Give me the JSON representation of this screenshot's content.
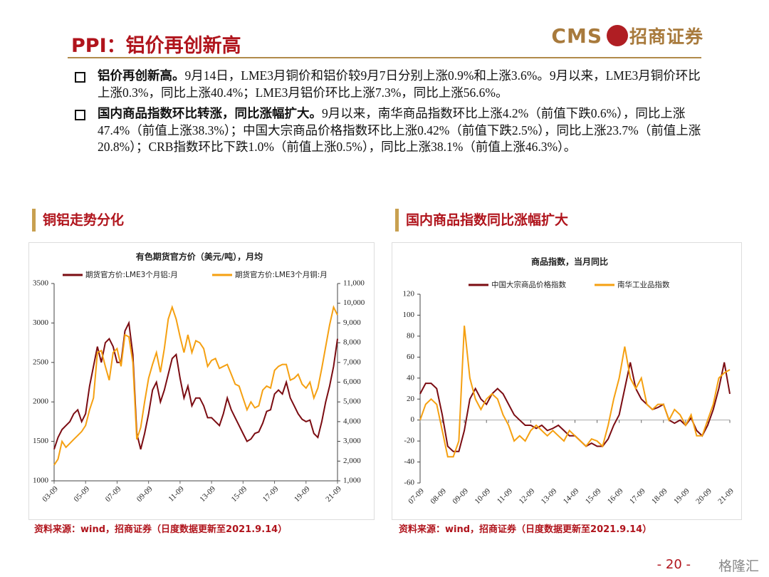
{
  "header": {
    "title": "PPI：铝价再创新高",
    "logo_en": "CMS",
    "logo_cn": "招商证券"
  },
  "bullets": [
    {
      "heading": "铝价再创新高。",
      "text": "9月14日，LME3月铜价和铝价较9月7日分别上涨0.9%和上涨3.6%。9月以来，LME3月铜价环比上涨0.3%，同比上涨40.4%；LME3月铝价环比上涨7.3%，同比上涨56.6%。"
    },
    {
      "heading": "国内商品指数环比转涨，同比涨幅扩大。",
      "text": "9月以来，南华商品指数环比上涨4.2%（前值下跌0.6%），同比上涨47.4%（前值上涨38.3%）；中国大宗商品价格指数环比上涨0.42%（前值下跌2.5%），同比上涨23.7%（前值上涨20.8%）；CRB指数环比下跌1.0%（前值上涨0.5%），同比上涨38.1%（前值上涨46.3%）。"
    }
  ],
  "sections": [
    {
      "heading": "铜铝走势分化",
      "source": "资料来源：wind，招商证券（日度数据更新至2021.9.14）"
    },
    {
      "heading": "国内商品指数同比涨幅扩大",
      "source": "资料来源：wind，招商证券（日度数据更新至2021.9.14）"
    }
  ],
  "chart_data": [
    {
      "type": "line",
      "title": "有色期货官方价（美元/吨），月均",
      "x": [
        "03-09",
        "03-12",
        "04-03",
        "04-06",
        "04-09",
        "04-12",
        "05-03",
        "05-06",
        "05-09",
        "05-12",
        "06-03",
        "06-06",
        "06-09",
        "06-12",
        "07-03",
        "07-06",
        "07-09",
        "07-12",
        "08-03",
        "08-06",
        "08-09",
        "08-12",
        "09-03",
        "09-06",
        "09-09",
        "09-12",
        "10-03",
        "10-06",
        "10-09",
        "10-12",
        "11-03",
        "11-06",
        "11-09",
        "11-12",
        "12-03",
        "12-06",
        "12-09",
        "12-12",
        "13-03",
        "13-06",
        "13-09",
        "13-12",
        "14-03",
        "14-06",
        "14-09",
        "14-12",
        "15-03",
        "15-06",
        "15-09",
        "15-12",
        "16-03",
        "16-06",
        "16-09",
        "16-12",
        "17-03",
        "17-06",
        "17-09",
        "17-12",
        "18-03",
        "18-06",
        "18-09",
        "18-12",
        "19-03",
        "19-06",
        "19-09",
        "19-12",
        "20-03",
        "20-06",
        "20-09",
        "20-12",
        "21-03",
        "21-06",
        "21-09"
      ],
      "xticks": [
        "03-09",
        "05-09",
        "07-09",
        "09-09",
        "11-09",
        "13-09",
        "15-09",
        "17-09",
        "19-09",
        "21-09"
      ],
      "ylim": [
        1000,
        3500
      ],
      "yticks": [
        1000,
        1500,
        2000,
        2500,
        3000,
        3500
      ],
      "y2lim": [
        1000,
        11000
      ],
      "y2ticks": [
        {
          "value": 1000,
          "label": "1,000"
        },
        {
          "value": 2000,
          "label": "2,000"
        },
        {
          "value": 3000,
          "label": "3,000"
        },
        {
          "value": 4000,
          "label": "4,000"
        },
        {
          "value": 5000,
          "label": "5,000"
        },
        {
          "value": 6000,
          "label": "6,000"
        },
        {
          "value": 7000,
          "label": "7,000"
        },
        {
          "value": 8000,
          "label": "8,000"
        },
        {
          "value": 9000,
          "label": "9,000"
        },
        {
          "value": 10000,
          "label": "10,000"
        },
        {
          "value": 11000,
          "label": "11,000"
        }
      ],
      "series": [
        {
          "name": "期货官方价:LME3个月铝:月",
          "color": "#7b0c12",
          "values": [
            1400,
            1550,
            1650,
            1700,
            1750,
            1850,
            1900,
            1750,
            1850,
            2200,
            2450,
            2700,
            2500,
            2750,
            2800,
            2700,
            2500,
            2500,
            2900,
            3000,
            2600,
            1600,
            1400,
            1600,
            1850,
            2150,
            2250,
            2000,
            2150,
            2350,
            2550,
            2600,
            2300,
            2050,
            2200,
            1950,
            2050,
            2050,
            1950,
            1800,
            1800,
            1750,
            1700,
            1850,
            2050,
            1900,
            1800,
            1700,
            1600,
            1500,
            1530,
            1600,
            1620,
            1730,
            1880,
            1900,
            2100,
            2150,
            2100,
            2250,
            2050,
            1950,
            1850,
            1780,
            1750,
            1770,
            1600,
            1550,
            1750,
            2000,
            2200,
            2450,
            2800
          ]
        },
        {
          "name": "期货官方价:LME3个月铜:月",
          "color": "#f5a011",
          "axis": "y2",
          "values": [
            1800,
            2100,
            3000,
            2700,
            2900,
            3100,
            3300,
            3500,
            3800,
            4600,
            5200,
            7500,
            7600,
            6800,
            6100,
            7500,
            7700,
            6800,
            8400,
            8300,
            7000,
            3100,
            3700,
            5000,
            6200,
            6900,
            7500,
            6500,
            7700,
            9200,
            9800,
            9200,
            8300,
            7500,
            8400,
            7500,
            8100,
            8000,
            7700,
            6800,
            7100,
            7200,
            6700,
            6800,
            6900,
            6400,
            5900,
            5800,
            5200,
            4600,
            5000,
            4700,
            4800,
            5600,
            5800,
            5700,
            6600,
            6800,
            6900,
            6900,
            6100,
            6200,
            6400,
            5900,
            5700,
            6000,
            5200,
            5700,
            6700,
            7800,
            8900,
            9800,
            9400
          ]
        }
      ]
    },
    {
      "type": "line",
      "title": "商品指数，当月同比",
      "x": [
        "07-09",
        "07-12",
        "08-03",
        "08-06",
        "08-09",
        "08-12",
        "09-03",
        "09-06",
        "09-09",
        "09-12",
        "10-03",
        "10-06",
        "10-09",
        "10-12",
        "11-03",
        "11-06",
        "11-09",
        "11-12",
        "12-03",
        "12-06",
        "12-09",
        "12-12",
        "13-03",
        "13-06",
        "13-09",
        "13-12",
        "14-03",
        "14-06",
        "14-09",
        "14-12",
        "15-03",
        "15-06",
        "15-09",
        "15-12",
        "16-03",
        "16-06",
        "16-09",
        "16-12",
        "17-03",
        "17-06",
        "17-09",
        "17-12",
        "18-03",
        "18-06",
        "18-09",
        "18-12",
        "19-03",
        "19-06",
        "19-09",
        "19-12",
        "20-03",
        "20-06",
        "20-09",
        "20-12",
        "21-03",
        "21-06",
        "21-09"
      ],
      "xticks": [
        "07-09",
        "08-09",
        "09-09",
        "10-09",
        "11-09",
        "12-09",
        "13-09",
        "14-09",
        "15-09",
        "16-09",
        "17-09",
        "18-09",
        "19-09",
        "20-09",
        "21-09"
      ],
      "ylim": [
        -60,
        120
      ],
      "yticks": [
        -60,
        -40,
        -20,
        0,
        20,
        40,
        60,
        80,
        100,
        120
      ],
      "series": [
        {
          "name": "中国大宗商品价格指数",
          "color": "#7b0c12",
          "values": [
            25,
            35,
            35,
            30,
            5,
            -25,
            -30,
            -30,
            -10,
            20,
            30,
            20,
            15,
            25,
            30,
            25,
            15,
            5,
            0,
            -5,
            -5,
            -8,
            -5,
            -10,
            -8,
            -5,
            -10,
            -15,
            -15,
            -20,
            -25,
            -22,
            -25,
            -25,
            -18,
            -5,
            5,
            30,
            55,
            30,
            20,
            15,
            10,
            12,
            15,
            0,
            -3,
            0,
            -5,
            2,
            -10,
            -15,
            -5,
            10,
            30,
            55,
            25
          ]
        },
        {
          "name": "南华工业品指数",
          "color": "#f5a011",
          "values": [
            0,
            15,
            20,
            15,
            -10,
            -35,
            -35,
            -20,
            90,
            40,
            20,
            10,
            20,
            25,
            20,
            5,
            -5,
            -20,
            -15,
            -20,
            -10,
            -5,
            -10,
            -15,
            -10,
            -15,
            -20,
            -10,
            -15,
            -20,
            -25,
            -18,
            -20,
            -25,
            -5,
            20,
            40,
            70,
            40,
            30,
            40,
            15,
            10,
            15,
            15,
            0,
            10,
            5,
            -5,
            5,
            -15,
            -15,
            0,
            15,
            40,
            45,
            48
          ]
        }
      ]
    }
  ],
  "footer": {
    "page": "- 20 -",
    "watermark": "格隆汇"
  }
}
